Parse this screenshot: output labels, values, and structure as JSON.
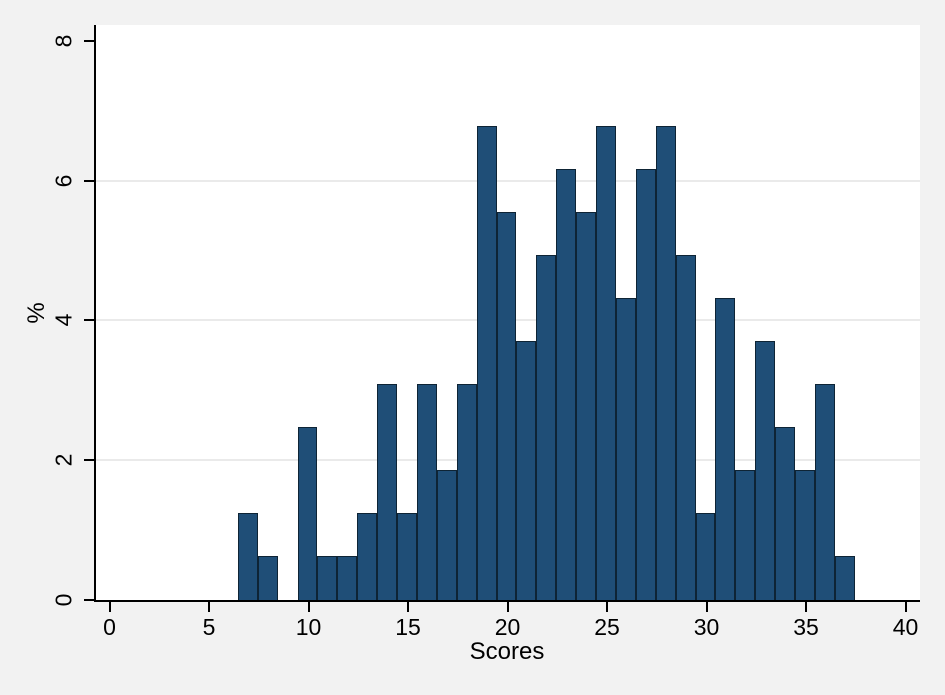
{
  "figure": {
    "background_color": "#f2f2f2",
    "plot_background_color": "#ffffff",
    "axis_color": "#000000",
    "tick_color": "#000000",
    "gridline_color": "#eaeaea",
    "text_color": "#000000",
    "bar_fill_color": "#1f4e77",
    "bar_outline_color": "#0e2435"
  },
  "chart_data": {
    "type": "bar",
    "subtype": "histogram",
    "title": "",
    "xlabel": "Scores",
    "ylabel": "%",
    "x_ticks": [
      0,
      5,
      10,
      15,
      20,
      25,
      30,
      35,
      40
    ],
    "y_ticks": [
      0,
      2,
      4,
      6,
      8
    ],
    "grid_ticks": [
      2,
      4,
      6
    ],
    "xlim": [
      -0.75,
      40.75
    ],
    "ylim": [
      0,
      8.23
    ],
    "legend": "none",
    "grid": "horizontal-only",
    "bin_width": 1.0,
    "n_bins": 31,
    "total_n_implied": 162,
    "bars": [
      {
        "start": 6.45,
        "end": 7.45,
        "count": 2,
        "pct": 1.235
      },
      {
        "start": 7.45,
        "end": 8.45,
        "count": 1,
        "pct": 0.617
      },
      {
        "start": 8.45,
        "end": 9.45,
        "count": 0,
        "pct": 0
      },
      {
        "start": 9.45,
        "end": 10.45,
        "count": 4,
        "pct": 2.469
      },
      {
        "start": 10.45,
        "end": 11.45,
        "count": 1,
        "pct": 0.617
      },
      {
        "start": 11.45,
        "end": 12.45,
        "count": 1,
        "pct": 0.617
      },
      {
        "start": 12.45,
        "end": 13.45,
        "count": 2,
        "pct": 1.235
      },
      {
        "start": 13.45,
        "end": 14.45,
        "count": 5,
        "pct": 3.086
      },
      {
        "start": 14.45,
        "end": 15.45,
        "count": 2,
        "pct": 1.235
      },
      {
        "start": 15.45,
        "end": 16.45,
        "count": 5,
        "pct": 3.086
      },
      {
        "start": 16.45,
        "end": 17.45,
        "count": 3,
        "pct": 1.852
      },
      {
        "start": 17.45,
        "end": 18.45,
        "count": 5,
        "pct": 3.086
      },
      {
        "start": 18.45,
        "end": 19.45,
        "count": 11,
        "pct": 6.79
      },
      {
        "start": 19.45,
        "end": 20.45,
        "count": 9,
        "pct": 5.556
      },
      {
        "start": 20.45,
        "end": 21.45,
        "count": 6,
        "pct": 3.704
      },
      {
        "start": 21.45,
        "end": 22.45,
        "count": 8,
        "pct": 4.938
      },
      {
        "start": 22.45,
        "end": 23.45,
        "count": 10,
        "pct": 6.173
      },
      {
        "start": 23.45,
        "end": 24.45,
        "count": 9,
        "pct": 5.556
      },
      {
        "start": 24.45,
        "end": 25.45,
        "count": 11,
        "pct": 6.79
      },
      {
        "start": 25.45,
        "end": 26.45,
        "count": 7,
        "pct": 4.321
      },
      {
        "start": 26.45,
        "end": 27.45,
        "count": 10,
        "pct": 6.173
      },
      {
        "start": 27.45,
        "end": 28.45,
        "count": 11,
        "pct": 6.79
      },
      {
        "start": 28.45,
        "end": 29.45,
        "count": 8,
        "pct": 4.938
      },
      {
        "start": 29.45,
        "end": 30.45,
        "count": 2,
        "pct": 1.235
      },
      {
        "start": 30.45,
        "end": 31.45,
        "count": 7,
        "pct": 4.321
      },
      {
        "start": 31.45,
        "end": 32.45,
        "count": 3,
        "pct": 1.852
      },
      {
        "start": 32.45,
        "end": 33.45,
        "count": 6,
        "pct": 3.704
      },
      {
        "start": 33.45,
        "end": 34.45,
        "count": 4,
        "pct": 2.469
      },
      {
        "start": 34.45,
        "end": 35.45,
        "count": 3,
        "pct": 1.852
      },
      {
        "start": 35.45,
        "end": 36.45,
        "count": 5,
        "pct": 3.086
      },
      {
        "start": 36.45,
        "end": 37.45,
        "count": 1,
        "pct": 0.617
      }
    ]
  }
}
